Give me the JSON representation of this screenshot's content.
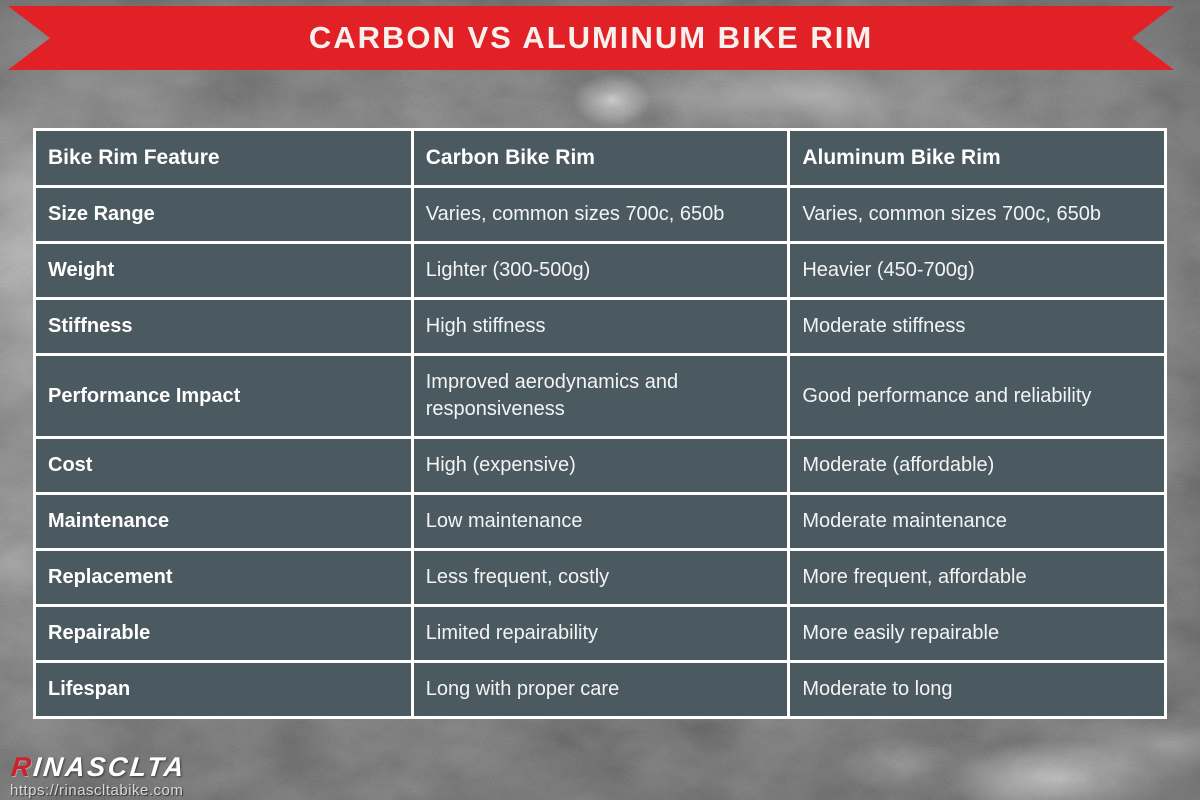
{
  "banner": {
    "title": "CARBON VS ALUMINUM BIKE RIM",
    "ribbon_color": "#e22127",
    "title_color": "#f7f1ee"
  },
  "table": {
    "headers": [
      "Bike Rim Feature",
      "Carbon Bike Rim",
      "Aluminum Bike Rim"
    ],
    "rows": [
      {
        "feature": "Size Range",
        "carbon": "Varies, common sizes 700c, 650b",
        "aluminum": "Varies, common sizes 700c, 650b"
      },
      {
        "feature": "Weight",
        "carbon": "Lighter (300-500g)",
        "aluminum": "Heavier (450-700g)"
      },
      {
        "feature": "Stiffness",
        "carbon": "High stiffness",
        "aluminum": "Moderate stiffness"
      },
      {
        "feature": "Performance Impact",
        "carbon": "Improved aerodynamics and responsiveness",
        "aluminum": "Good performance and reliability"
      },
      {
        "feature": "Cost",
        "carbon": "High (expensive)",
        "aluminum": "Moderate (affordable)"
      },
      {
        "feature": "Maintenance",
        "carbon": "Low maintenance",
        "aluminum": "Moderate maintenance"
      },
      {
        "feature": "Replacement",
        "carbon": "Less frequent, costly",
        "aluminum": "More frequent, affordable"
      },
      {
        "feature": "Repairable",
        "carbon": "Limited repairability",
        "aluminum": "More easily repairable"
      },
      {
        "feature": "Lifespan",
        "carbon": "Long with proper care",
        "aluminum": "Moderate to long"
      }
    ],
    "cell_color": "#4b5960",
    "border_color": "#ffffff"
  },
  "footer": {
    "logo_text": "RINASCLTA",
    "logo_accent_color": "#d0212a",
    "url": "https://rinascltabike.com"
  }
}
